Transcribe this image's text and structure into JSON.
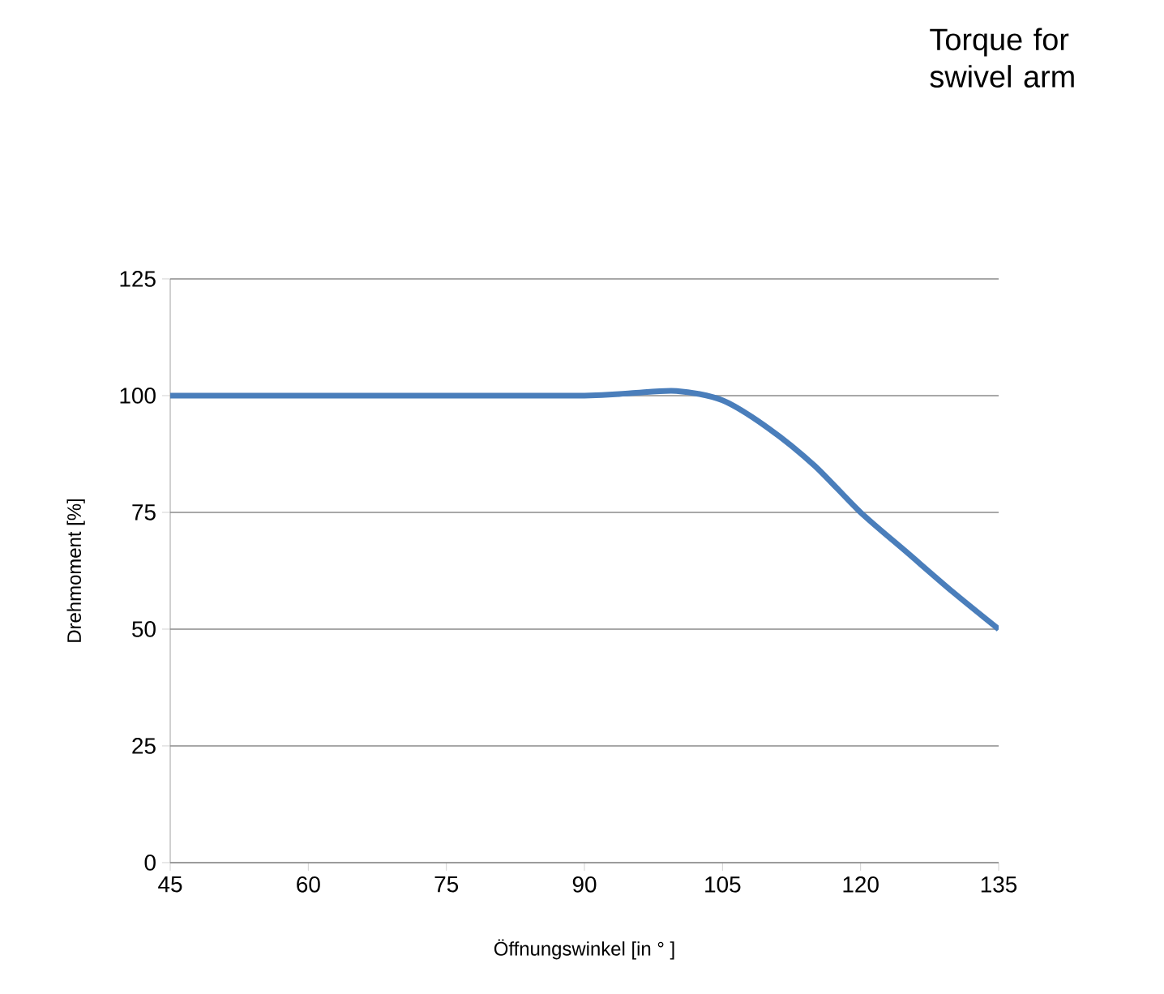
{
  "chart_data": {
    "type": "line",
    "title": "Torque for swivel arm",
    "xlabel": "Öffnungswinkel [in ° ]",
    "ylabel": "Drehmoment [%]",
    "x": [
      45,
      60,
      75,
      90,
      95,
      100,
      105,
      110,
      115,
      120,
      125,
      130,
      135
    ],
    "series": [
      {
        "color": "#4a7ebb",
        "values": [
          100,
          100,
          100,
          100,
          100.5,
          101,
          99,
          93,
          85,
          75,
          66.5,
          58,
          50
        ]
      }
    ],
    "xlim": [
      45,
      135
    ],
    "xticks": [
      45,
      60,
      75,
      90,
      105,
      120,
      135
    ],
    "ylim": [
      0,
      125
    ],
    "yticks": [
      0,
      25,
      50,
      75,
      100,
      125
    ],
    "grid": "y",
    "marker": "none",
    "line_style": "solid"
  }
}
